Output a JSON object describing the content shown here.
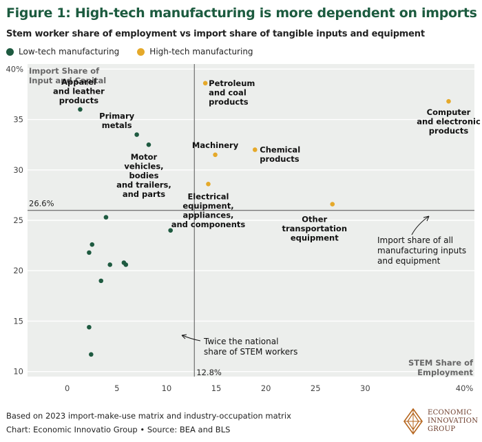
{
  "title": "Figure 1: High-tech manufacturing is more dependent on imports",
  "subtitle": "Stem worker share of employment vs import share of tangible inputs and equipment",
  "legend": [
    {
      "label": "Low-tech manufacturing",
      "color": "#1e5a40"
    },
    {
      "label": "High-tech manufacturing",
      "color": "#e5a92a"
    }
  ],
  "footnote": "Based on 2023 import-make-use matrix and industry-occupation matrix",
  "source": "Chart: Economic Innovatio Group • Source: BEA and BLS",
  "logo": {
    "line1": "ECONOMIC",
    "line2": "INNOVATION",
    "line3": "GROUP"
  },
  "chart_data": {
    "type": "scatter",
    "title": "Figure 1: High-tech manufacturing is more dependent on imports",
    "subtitle": "Stem worker share of employment vs import share of tangible inputs and equipment",
    "xlabel": "STEM Share of Employment",
    "ylabel": "Import Share of Input and Capital",
    "xlim": [
      -4,
      41
    ],
    "ylim": [
      9.5,
      40.5
    ],
    "xticks": [
      0,
      5,
      10,
      15,
      20,
      25,
      30,
      40
    ],
    "xtick_labels": [
      "0",
      "5",
      "10",
      "15",
      "20",
      "25",
      "30",
      "40%"
    ],
    "yticks": [
      10,
      15,
      20,
      25,
      30,
      35,
      40
    ],
    "ytick_labels": [
      "10",
      "15",
      "20",
      "25",
      "30",
      "35",
      "40%"
    ],
    "grid": "horizontal",
    "reference_lines": {
      "horizontal": {
        "value": 26.6,
        "label": "26.6%"
      },
      "vertical": {
        "value": 12.8,
        "label": "12.8%"
      }
    },
    "series": [
      {
        "name": "Low-tech manufacturing",
        "color": "#1e5a40",
        "points": [
          {
            "x": 1.3,
            "y": 36.0,
            "label": "Apparel and leather products"
          },
          {
            "x": 7.0,
            "y": 33.5,
            "label": "Primary metals"
          },
          {
            "x": 8.2,
            "y": 32.5,
            "label": "Motor vehicles, bodies and trailers, and parts"
          },
          {
            "x": 10.4,
            "y": 24.0,
            "label": ""
          },
          {
            "x": 3.9,
            "y": 25.3,
            "label": ""
          },
          {
            "x": 2.5,
            "y": 22.6,
            "label": ""
          },
          {
            "x": 2.2,
            "y": 21.8,
            "label": ""
          },
          {
            "x": 4.3,
            "y": 20.6,
            "label": ""
          },
          {
            "x": 5.7,
            "y": 20.8,
            "label": ""
          },
          {
            "x": 5.9,
            "y": 20.6,
            "label": ""
          },
          {
            "x": 3.4,
            "y": 19.0,
            "label": ""
          },
          {
            "x": 2.2,
            "y": 14.4,
            "label": ""
          },
          {
            "x": 2.4,
            "y": 11.7,
            "label": ""
          }
        ]
      },
      {
        "name": "High-tech manufacturing",
        "color": "#e5a92a",
        "points": [
          {
            "x": 13.9,
            "y": 38.6,
            "label": "Petroleum and coal products"
          },
          {
            "x": 14.9,
            "y": 31.5,
            "label": "Machinery"
          },
          {
            "x": 18.9,
            "y": 32.0,
            "label": "Chemical products"
          },
          {
            "x": 14.2,
            "y": 28.6,
            "label": "Electrical equipment, appliances, and components"
          },
          {
            "x": 26.7,
            "y": 26.6,
            "label": "Other transportation equipment"
          },
          {
            "x": 38.4,
            "y": 36.8,
            "label": "Computer and electronic products"
          }
        ]
      }
    ],
    "annotations": [
      {
        "text": "Import share of all manufacturing inputs and equipment"
      },
      {
        "text": "Twice the national share of STEM workers"
      }
    ]
  }
}
